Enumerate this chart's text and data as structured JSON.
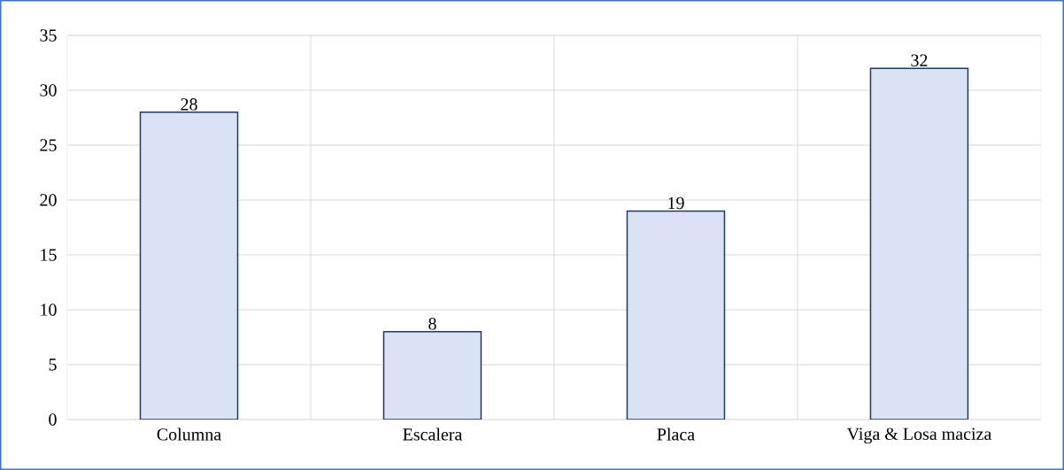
{
  "chart_data": {
    "type": "bar",
    "categories": [
      "Columna",
      "Escalera",
      "Placa",
      "Viga & Losa maciza"
    ],
    "values": [
      28,
      8,
      19,
      32
    ],
    "color": "#dae3f3",
    "ylim": [
      0,
      35
    ],
    "yticks": [
      0,
      5,
      10,
      15,
      20,
      25,
      30,
      35
    ],
    "grid": true,
    "data_labels": true
  }
}
